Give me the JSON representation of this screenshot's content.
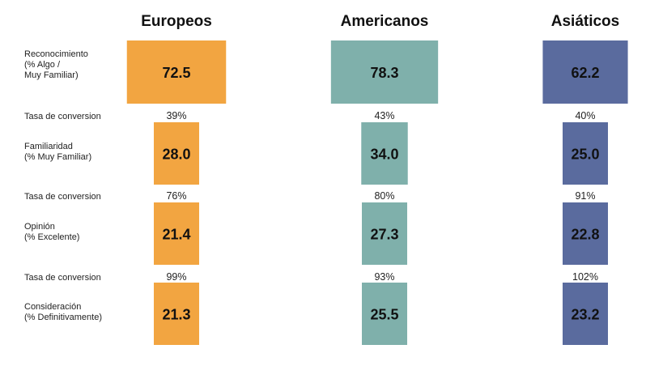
{
  "chart_data": {
    "type": "bar",
    "series": [
      {
        "name": "Europeos",
        "color": "#F2A541",
        "values": [
          72.5,
          28.0,
          21.4,
          21.3
        ],
        "value_labels": [
          "72.5",
          "28.0",
          "21.4",
          "21.3"
        ],
        "conversion_rates": [
          "39%",
          "76%",
          "99%"
        ]
      },
      {
        "name": "Americanos",
        "color": "#7FB0AB",
        "values": [
          78.3,
          34.0,
          27.3,
          25.5
        ],
        "value_labels": [
          "78.3",
          "34.0",
          "27.3",
          "25.5"
        ],
        "conversion_rates": [
          "43%",
          "80%",
          "93%"
        ]
      },
      {
        "name": "Asiáticos",
        "color": "#5A6B9E",
        "values": [
          62.2,
          25.0,
          22.8,
          23.2
        ],
        "value_labels": [
          "62.2",
          "25.0",
          "22.8",
          "23.2"
        ],
        "conversion_rates": [
          "40%",
          "91%",
          "102%"
        ]
      }
    ],
    "stages": [
      {
        "lines": [
          "Reconocimiento",
          "(% Algo /",
          "Muy Familiar)"
        ]
      },
      {
        "lines": [
          "Familiaridad",
          "(% Muy Familiar)"
        ]
      },
      {
        "lines": [
          "Opinión",
          "(% Excelente)"
        ]
      },
      {
        "lines": [
          "Consideración",
          "(% Definitivamente)"
        ]
      }
    ],
    "conversion_label": "Tasa de conversion"
  }
}
